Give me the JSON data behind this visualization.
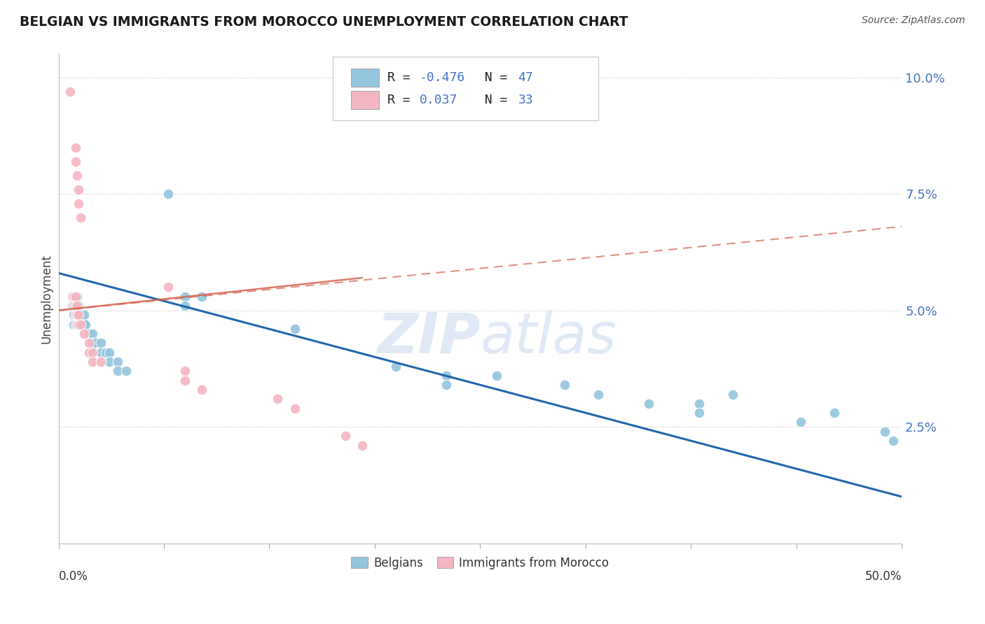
{
  "title": "BELGIAN VS IMMIGRANTS FROM MOROCCO UNEMPLOYMENT CORRELATION CHART",
  "source": "Source: ZipAtlas.com",
  "ylabel": "Unemployment",
  "watermark": "ZIPatlas",
  "blue_color": "#92c5de",
  "pink_color": "#f4b6c2",
  "blue_line_color": "#2166ac",
  "pink_line_color": "#d6604d",
  "blue_scatter": [
    [
      0.008,
      0.051
    ],
    [
      0.009,
      0.049
    ],
    [
      0.009,
      0.047
    ],
    [
      0.01,
      0.053
    ],
    [
      0.01,
      0.051
    ],
    [
      0.01,
      0.049
    ],
    [
      0.01,
      0.047
    ],
    [
      0.011,
      0.053
    ],
    [
      0.011,
      0.051
    ],
    [
      0.012,
      0.051
    ],
    [
      0.012,
      0.049
    ],
    [
      0.013,
      0.049
    ],
    [
      0.013,
      0.047
    ],
    [
      0.015,
      0.049
    ],
    [
      0.015,
      0.047
    ],
    [
      0.016,
      0.047
    ],
    [
      0.018,
      0.045
    ],
    [
      0.02,
      0.045
    ],
    [
      0.02,
      0.043
    ],
    [
      0.022,
      0.043
    ],
    [
      0.025,
      0.043
    ],
    [
      0.025,
      0.041
    ],
    [
      0.028,
      0.041
    ],
    [
      0.03,
      0.041
    ],
    [
      0.03,
      0.039
    ],
    [
      0.035,
      0.039
    ],
    [
      0.035,
      0.037
    ],
    [
      0.04,
      0.037
    ],
    [
      0.065,
      0.075
    ],
    [
      0.075,
      0.053
    ],
    [
      0.075,
      0.051
    ],
    [
      0.085,
      0.053
    ],
    [
      0.14,
      0.046
    ],
    [
      0.2,
      0.038
    ],
    [
      0.23,
      0.036
    ],
    [
      0.23,
      0.034
    ],
    [
      0.26,
      0.036
    ],
    [
      0.3,
      0.034
    ],
    [
      0.32,
      0.032
    ],
    [
      0.35,
      0.03
    ],
    [
      0.38,
      0.03
    ],
    [
      0.38,
      0.028
    ],
    [
      0.4,
      0.032
    ],
    [
      0.44,
      0.026
    ],
    [
      0.46,
      0.028
    ],
    [
      0.49,
      0.024
    ],
    [
      0.495,
      0.022
    ]
  ],
  "pink_scatter": [
    [
      0.007,
      0.097
    ],
    [
      0.01,
      0.085
    ],
    [
      0.01,
      0.082
    ],
    [
      0.011,
      0.079
    ],
    [
      0.012,
      0.076
    ],
    [
      0.012,
      0.073
    ],
    [
      0.013,
      0.07
    ],
    [
      0.008,
      0.053
    ],
    [
      0.009,
      0.053
    ],
    [
      0.009,
      0.051
    ],
    [
      0.01,
      0.053
    ],
    [
      0.01,
      0.051
    ],
    [
      0.01,
      0.049
    ],
    [
      0.011,
      0.051
    ],
    [
      0.011,
      0.049
    ],
    [
      0.011,
      0.047
    ],
    [
      0.012,
      0.049
    ],
    [
      0.012,
      0.047
    ],
    [
      0.013,
      0.047
    ],
    [
      0.015,
      0.045
    ],
    [
      0.018,
      0.043
    ],
    [
      0.018,
      0.041
    ],
    [
      0.02,
      0.041
    ],
    [
      0.02,
      0.039
    ],
    [
      0.025,
      0.039
    ],
    [
      0.065,
      0.055
    ],
    [
      0.075,
      0.037
    ],
    [
      0.075,
      0.035
    ],
    [
      0.085,
      0.033
    ],
    [
      0.13,
      0.031
    ],
    [
      0.14,
      0.029
    ],
    [
      0.17,
      0.023
    ],
    [
      0.18,
      0.021
    ]
  ],
  "blue_trend_x": [
    0.0,
    0.5
  ],
  "blue_trend_y": [
    0.058,
    0.01
  ],
  "pink_trend_x": [
    0.0,
    0.5
  ],
  "pink_trend_y": [
    0.05,
    0.068
  ],
  "xmin": 0.0,
  "xmax": 0.5,
  "ymin": 0.0,
  "ymax": 0.105,
  "ytick_vals": [
    0.025,
    0.05,
    0.075,
    0.1
  ],
  "ytick_labels": [
    "2.5%",
    "5.0%",
    "7.5%",
    "10.0%"
  ],
  "xtick_vals": [
    0.0,
    0.0625,
    0.125,
    0.1875,
    0.25,
    0.3125,
    0.375,
    0.4375,
    0.5
  ],
  "legend_line1_black1": "R = ",
  "legend_line1_blue1": "-0.476",
  "legend_line1_black2": "   N = ",
  "legend_line1_blue2": "47",
  "legend_line2_black1": "R =  ",
  "legend_line2_blue1": "0.037",
  "legend_line2_black2": "   N = ",
  "legend_line2_blue2": "33"
}
